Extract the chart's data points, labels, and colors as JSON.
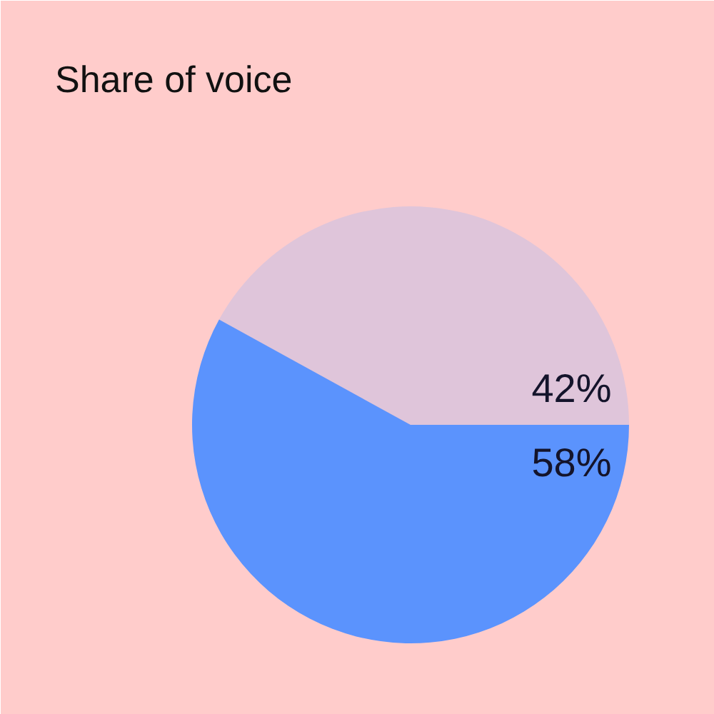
{
  "chart_data": {
    "type": "pie",
    "title": "Share of voice",
    "categories": [
      null,
      null
    ],
    "values": [
      42,
      58
    ],
    "colors": [
      "#dfc5da",
      "#5b93fd"
    ],
    "value_labels": [
      "42%",
      "58%"
    ]
  }
}
